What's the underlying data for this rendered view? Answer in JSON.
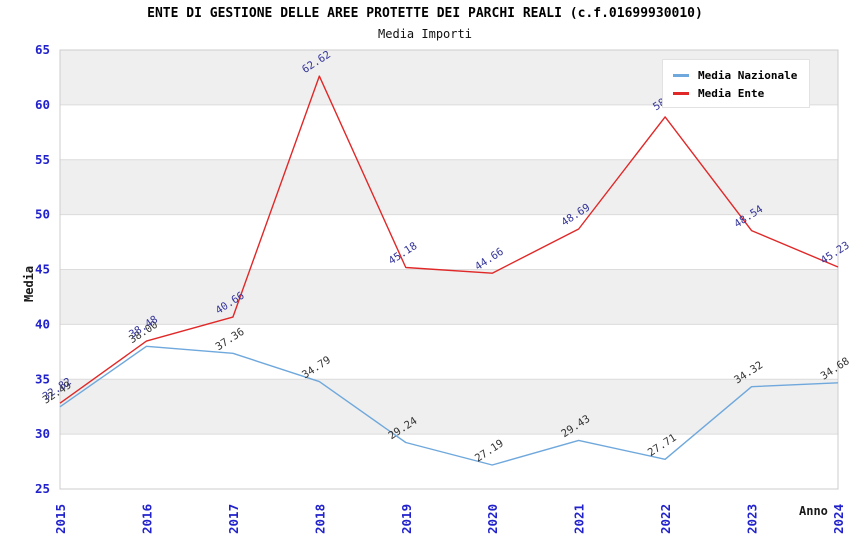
{
  "header": {
    "title": "ENTE DI GESTIONE DELLE AREE PROTETTE DEI PARCHI REALI (c.f.01699930010)",
    "subtitle": "Media Importi"
  },
  "chart_data": {
    "type": "line",
    "title": "ENTE DI GESTIONE DELLE AREE PROTETTE DEI PARCHI REALI (c.f.01699930010)",
    "subtitle": "Media Importi",
    "xlabel": "Anno",
    "ylabel": "Media",
    "x": [
      2015,
      2016,
      2017,
      2018,
      2019,
      2020,
      2021,
      2022,
      2023,
      2024
    ],
    "ylim": [
      25,
      65
    ],
    "ytick_step": 5,
    "yticks": [
      25,
      30,
      35,
      40,
      45,
      50,
      55,
      60,
      65
    ],
    "grid": "horizontal-bands-alternating",
    "legend_position": "top-right",
    "colors": {
      "tick_label": "#2222cc",
      "band_gray": "#efefef",
      "gridline": "#dcdcdc",
      "frame": "#cccccc",
      "nazionale_line": "#6fa8dc",
      "ente_line": "#e02828",
      "nazionale_point_label": "#333333",
      "ente_point_label": "#333399"
    },
    "series": [
      {
        "name": "Media Nazionale",
        "values": [
          32.49,
          38.0,
          37.36,
          34.79,
          29.24,
          27.19,
          29.43,
          27.71,
          34.32,
          34.68
        ],
        "labels": [
          "32.49",
          "38.00",
          "37.36",
          "34.79",
          "29.24",
          "27.19",
          "29.43",
          "27.71",
          "34.32",
          "34.68"
        ]
      },
      {
        "name": "Media Ente",
        "values": [
          32.82,
          38.48,
          40.66,
          62.62,
          45.18,
          44.66,
          48.69,
          58.9,
          48.54,
          45.23
        ],
        "labels": [
          "32.82",
          "38.48",
          "40.66",
          "62.62",
          "45.18",
          "44.66",
          "48.69",
          "58.9",
          "48.54",
          "45.23"
        ]
      }
    ]
  }
}
